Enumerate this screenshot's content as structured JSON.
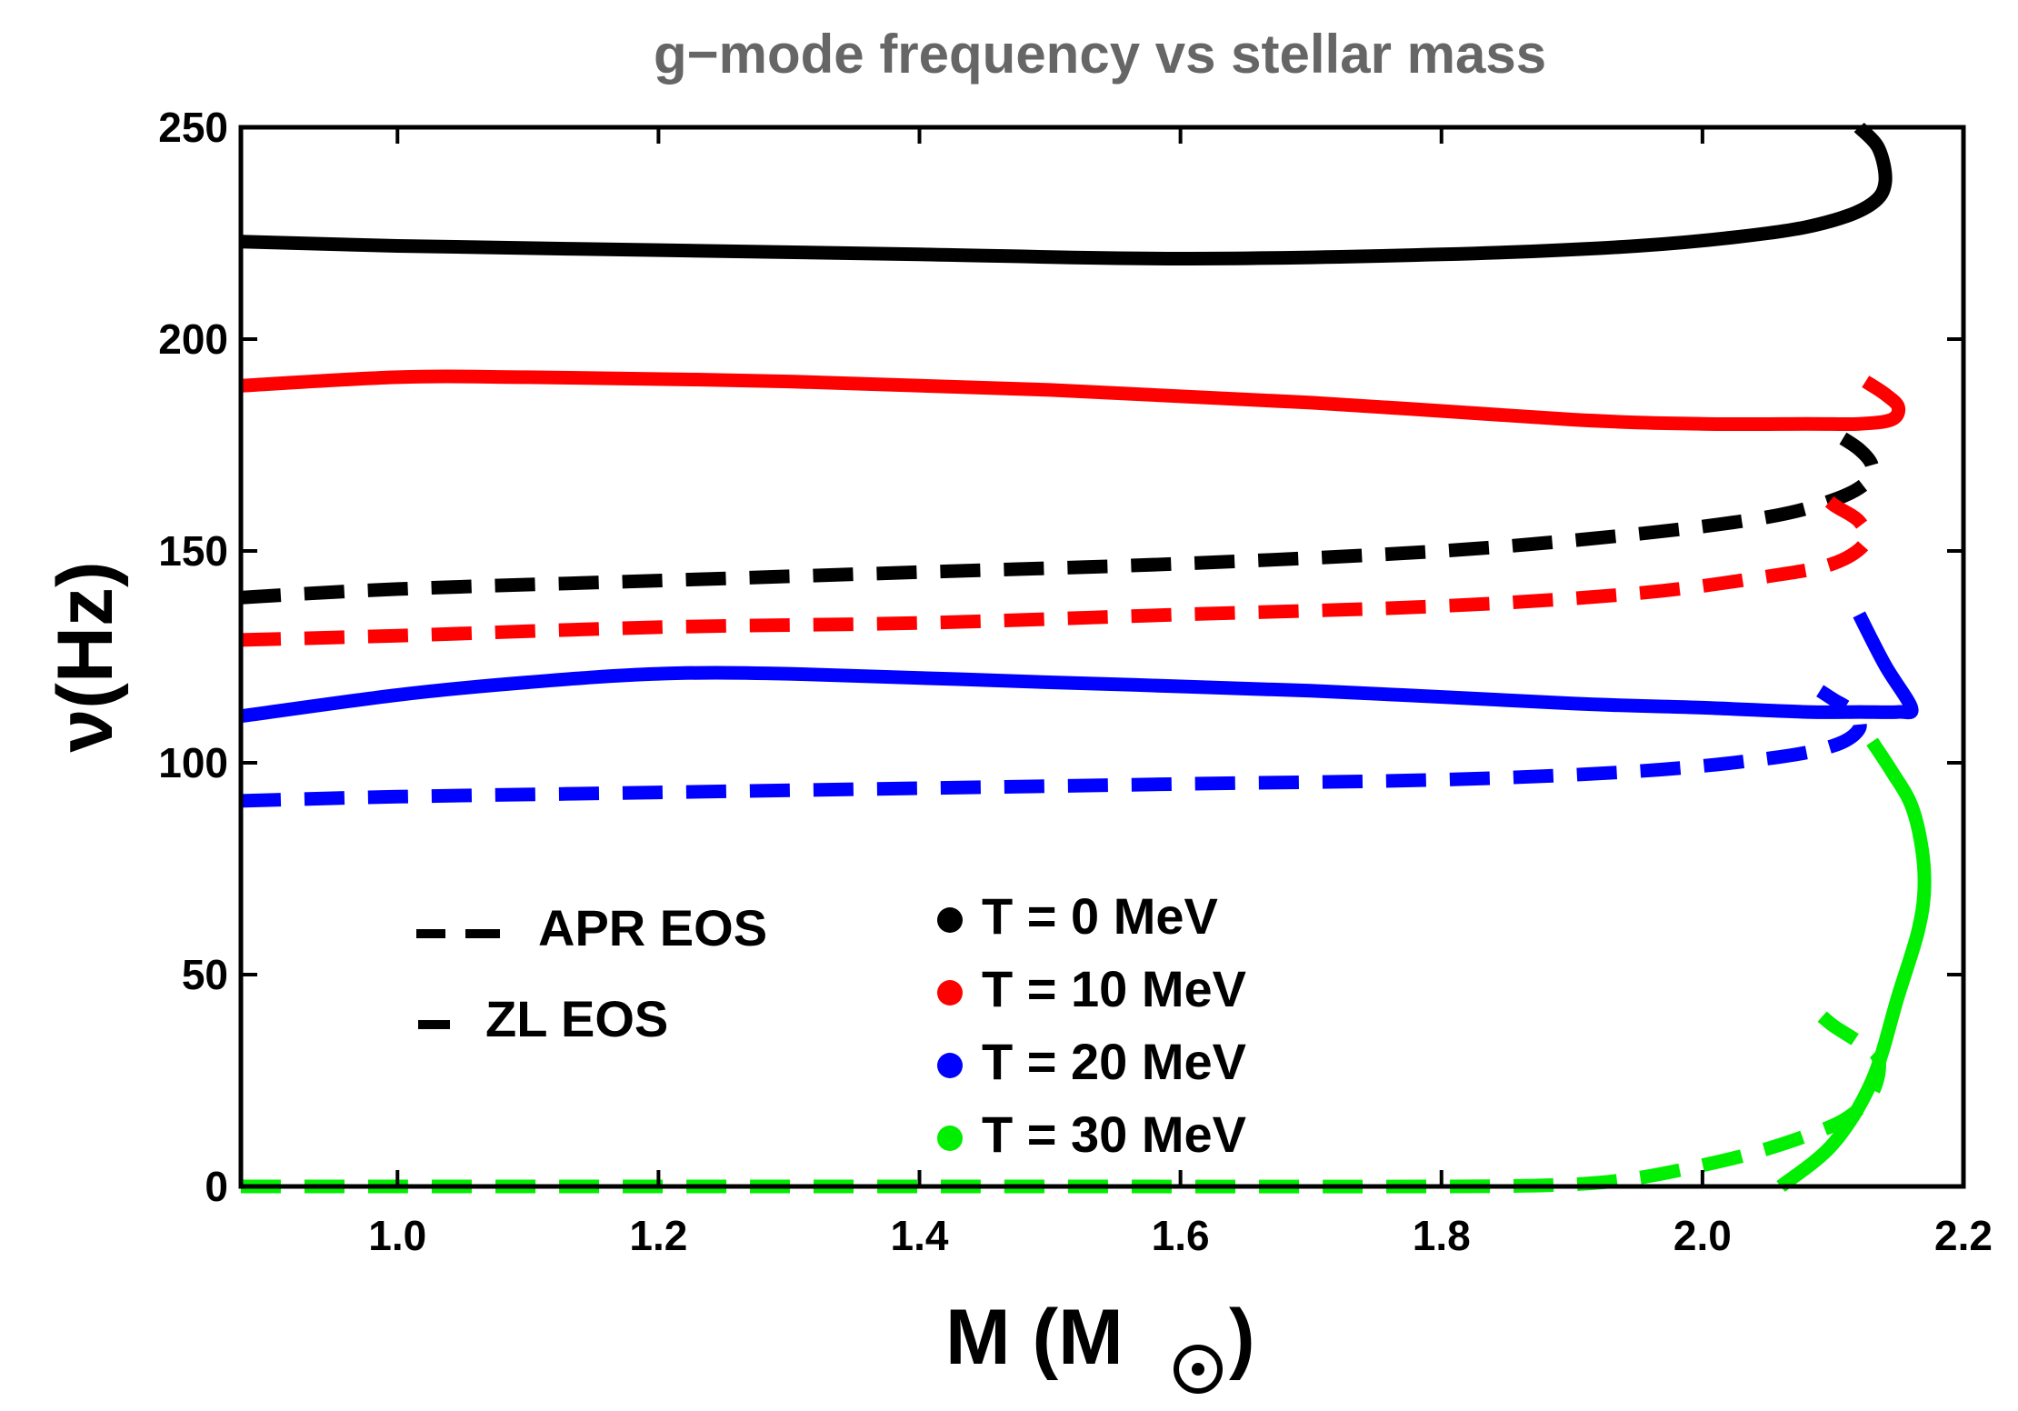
{
  "chart_data": {
    "type": "line",
    "title": "g−mode frequency vs stellar mass",
    "xlabel": "M (M",
    "xlabel_suffix": ")",
    "xlabel_symbol": "sun-symbol",
    "ylabel": "ν(Hz)",
    "xlim": [
      0.88,
      2.2
    ],
    "ylim": [
      0,
      250
    ],
    "xticks": [
      1.0,
      1.2,
      1.4,
      1.6,
      1.8,
      2.0,
      2.2
    ],
    "xtick_labels": [
      "1.0",
      "1.2",
      "1.4",
      "1.6",
      "1.8",
      "2.0",
      "2.2"
    ],
    "yticks": [
      0,
      50,
      100,
      150,
      200,
      250
    ],
    "ytick_labels": [
      "0",
      "50",
      "100",
      "150",
      "200",
      "250"
    ],
    "colors": {
      "T0": "#000000",
      "T10": "#ff0000",
      "T20": "#0000ff",
      "T30": "#00ee00"
    },
    "legend_eos": [
      {
        "label": "APR EOS",
        "style": "dashed"
      },
      {
        "label": "ZL EOS",
        "style": "solid"
      }
    ],
    "legend_temp": [
      {
        "label": "T = 0 MeV",
        "color": "#000000"
      },
      {
        "label": "T = 10 MeV",
        "color": "#ff0000"
      },
      {
        "label": "T = 20 MeV",
        "color": "#0000ff"
      },
      {
        "label": "T = 30 MeV",
        "color": "#00ee00"
      }
    ],
    "series": [
      {
        "name": "ZL EOS, T = 0 MeV",
        "eos": "ZL",
        "T": 0,
        "color": "#000000",
        "style": "solid",
        "x": [
          0.88,
          1.0,
          1.2,
          1.4,
          1.6,
          1.8,
          1.95,
          2.05,
          2.1,
          2.13,
          2.14,
          2.135,
          2.12
        ],
        "y": [
          223,
          222,
          221,
          220,
          219,
          220,
          222,
          225,
          228,
          232,
          237,
          245,
          250
        ]
      },
      {
        "name": "ZL EOS, T = 10 MeV",
        "eos": "ZL",
        "T": 10,
        "color": "#ff0000",
        "style": "solid",
        "x": [
          0.88,
          1.0,
          1.1,
          1.3,
          1.5,
          1.7,
          1.9,
          2.0,
          2.08,
          2.12,
          2.145,
          2.15,
          2.14,
          2.125
        ],
        "y": [
          189,
          191,
          191,
          190,
          188,
          185,
          181,
          180,
          180,
          180,
          181,
          184,
          187,
          190
        ]
      },
      {
        "name": "ZL EOS, T = 20 MeV",
        "eos": "ZL",
        "T": 20,
        "color": "#0000ff",
        "style": "solid",
        "x": [
          0.88,
          1.0,
          1.1,
          1.2,
          1.3,
          1.5,
          1.7,
          1.9,
          2.0,
          2.08,
          2.12,
          2.15,
          2.16,
          2.14,
          2.12
        ],
        "y": [
          111,
          116,
          119,
          121,
          121,
          119,
          117,
          114,
          113,
          112,
          112,
          112,
          113,
          123,
          135
        ]
      },
      {
        "name": "ZL EOS, T = 30 MeV",
        "eos": "ZL",
        "T": 30,
        "color": "#00ee00",
        "style": "solid",
        "x": [
          2.06,
          2.1,
          2.13,
          2.15,
          2.165,
          2.17,
          2.168,
          2.16,
          2.145,
          2.13
        ],
        "y": [
          0,
          10,
          25,
          45,
          60,
          70,
          80,
          90,
          98,
          105
        ]
      },
      {
        "name": "APR EOS, T = 0 MeV",
        "eos": "APR",
        "T": 0,
        "color": "#000000",
        "style": "dashed",
        "x": [
          0.88,
          1.0,
          1.2,
          1.4,
          1.6,
          1.8,
          1.95,
          2.05,
          2.1,
          2.125,
          2.13,
          2.12,
          2.1
        ],
        "y": [
          139,
          141,
          143,
          145,
          147,
          150,
          154,
          158,
          162,
          166,
          170,
          174,
          178
        ]
      },
      {
        "name": "APR EOS, T = 10 MeV",
        "eos": "APR",
        "T": 10,
        "color": "#ff0000",
        "style": "dashed",
        "x": [
          0.88,
          1.0,
          1.2,
          1.4,
          1.6,
          1.8,
          1.95,
          2.05,
          2.1,
          2.125,
          2.12,
          2.1,
          2.085
        ],
        "y": [
          129,
          130,
          132,
          133,
          135,
          137,
          140,
          144,
          147,
          152,
          157,
          161,
          165
        ]
      },
      {
        "name": "APR EOS, T = 20 MeV",
        "eos": "APR",
        "T": 20,
        "color": "#0000ff",
        "style": "dashed",
        "x": [
          0.88,
          1.0,
          1.2,
          1.4,
          1.6,
          1.8,
          1.95,
          2.05,
          2.1,
          2.12,
          2.115,
          2.1,
          2.09
        ],
        "y": [
          91,
          92,
          93,
          94,
          95,
          96,
          98,
          101,
          104,
          108,
          112,
          115,
          117
        ]
      },
      {
        "name": "APR EOS, T = 30 MeV",
        "eos": "APR",
        "T": 30,
        "color": "#00ee00",
        "style": "dashed",
        "x": [
          0.88,
          1.2,
          1.5,
          1.8,
          1.9,
          1.95,
          2.0,
          2.04,
          2.08,
          2.11,
          2.13,
          2.135,
          2.12,
          2.1,
          2.085
        ],
        "y": [
          0,
          0,
          0,
          0,
          0.5,
          2,
          5,
          8,
          12,
          16,
          22,
          30,
          34,
          38,
          42
        ]
      }
    ]
  }
}
